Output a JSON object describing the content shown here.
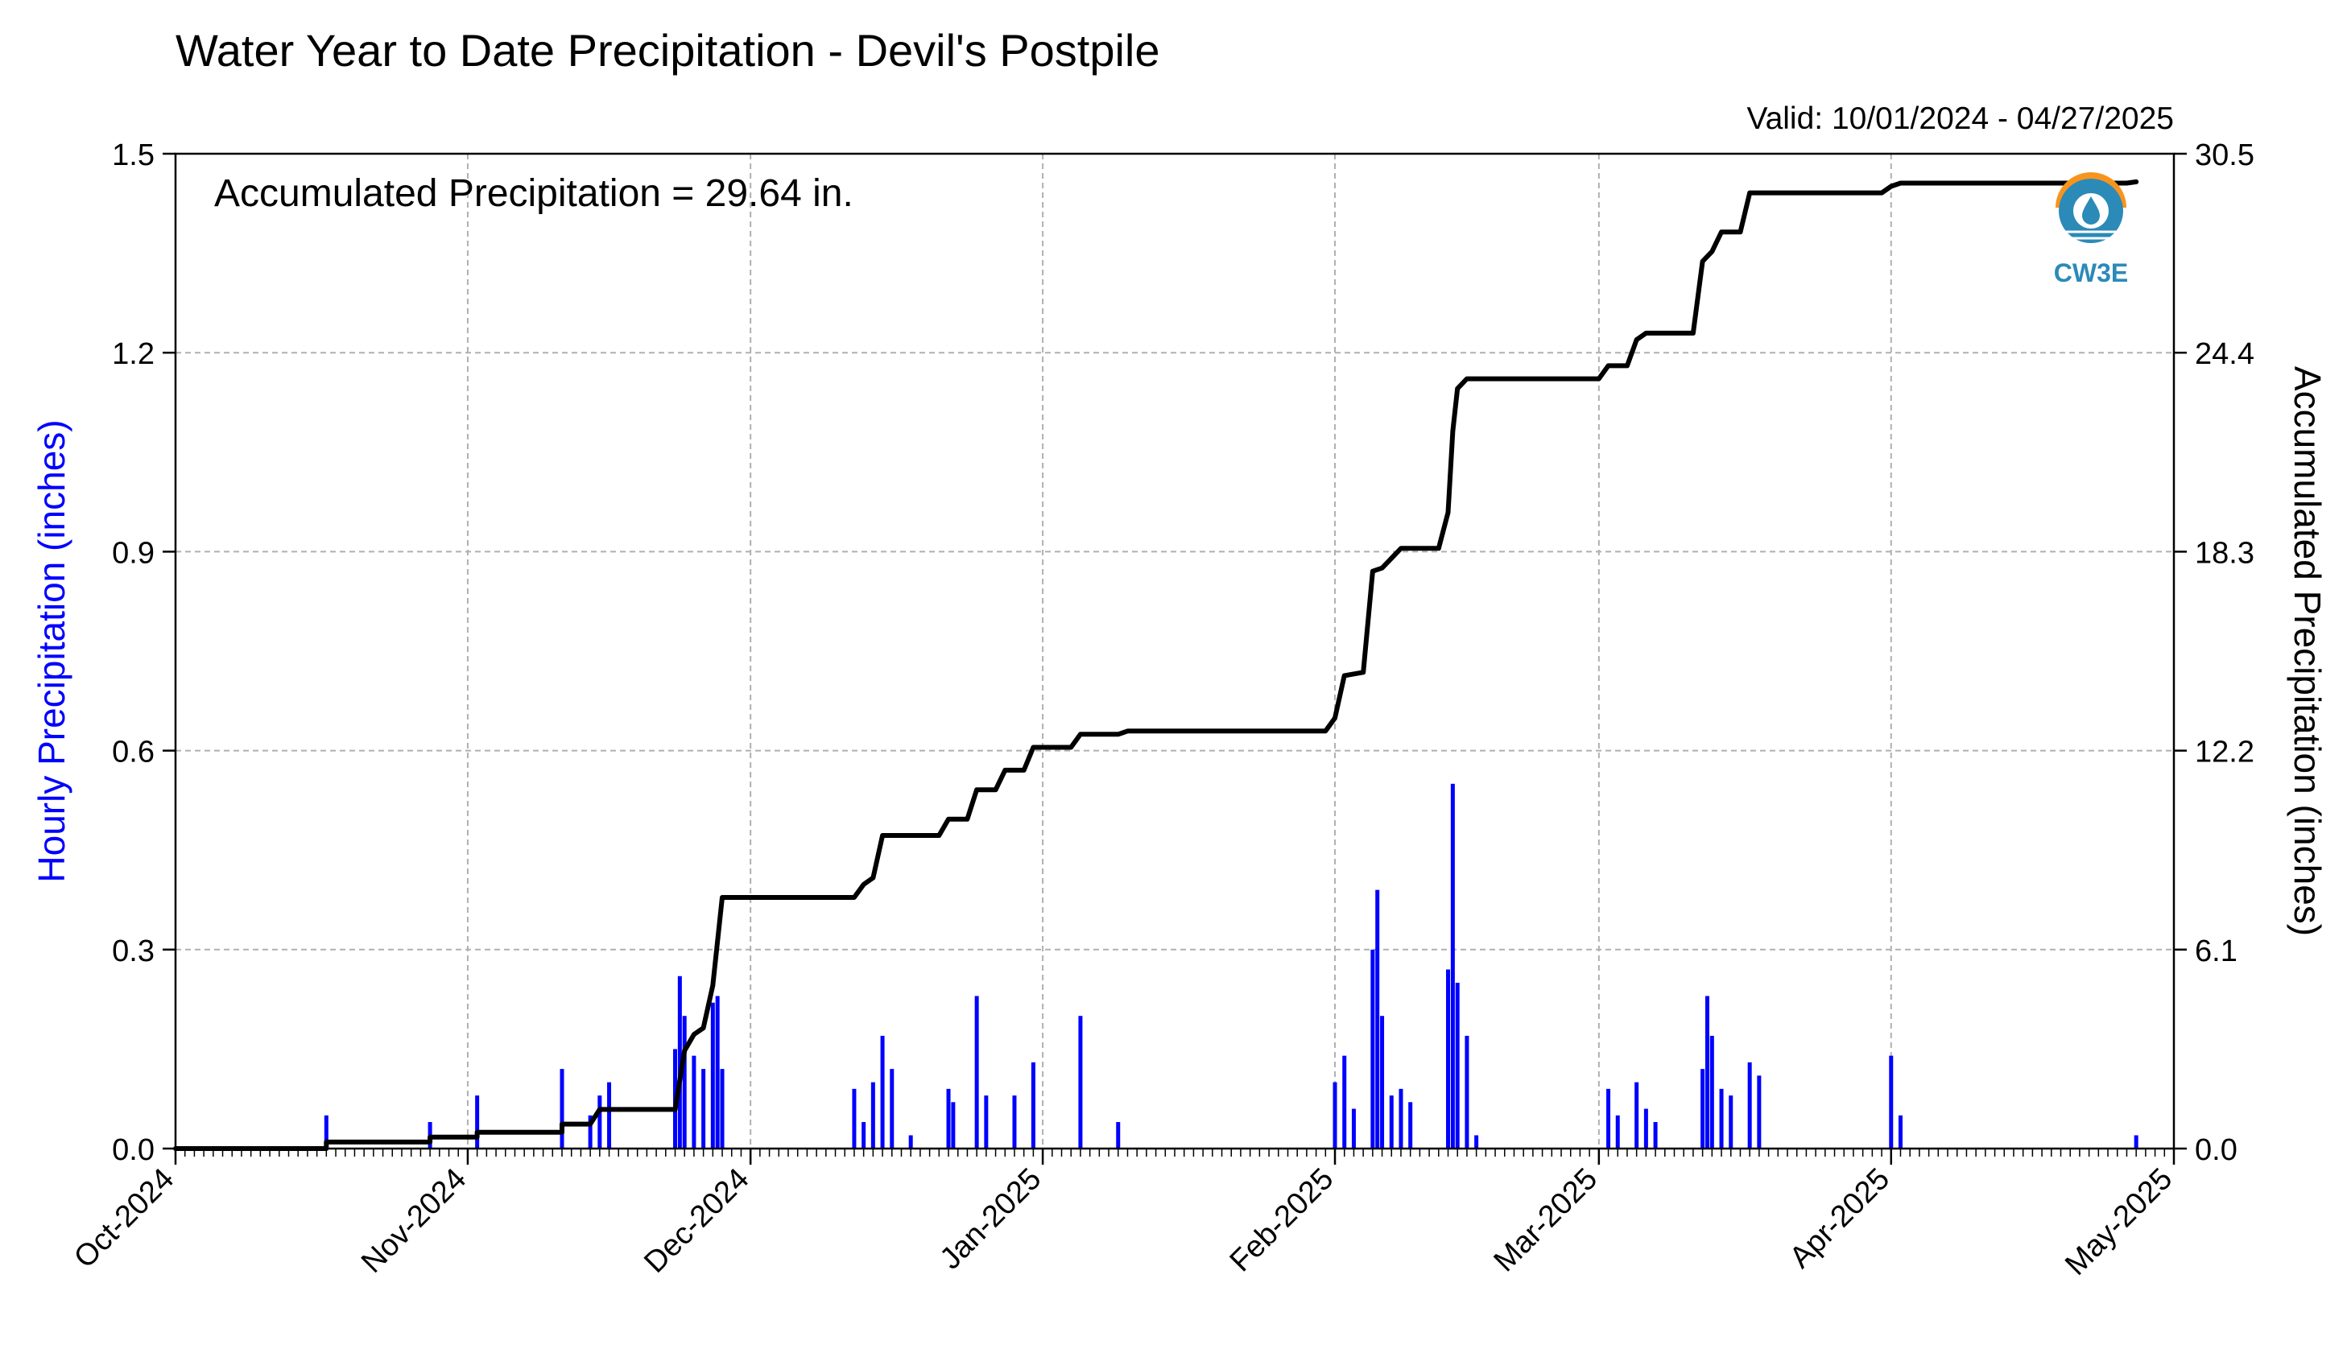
{
  "chart_data": {
    "type": "bar+line",
    "title": "Water Year to Date Precipitation - Devil's Postpile",
    "valid_text": "Valid: 10/01/2024 - 04/27/2025",
    "annotation": "Accumulated Precipitation = 29.64 in.",
    "logo_text": "CW3E",
    "ylabel_left": "Hourly Precipitation (inches)",
    "ylabel_right": "Accumulated Precipitation (inches)",
    "x_range": [
      "2024-10-01",
      "2025-05-01"
    ],
    "x_tick_labels": [
      "Oct-2024",
      "Nov-2024",
      "Dec-2024",
      "Jan-2025",
      "Feb-2025",
      "Mar-2025",
      "Apr-2025",
      "May-2025"
    ],
    "x_tick_dates": [
      "2024-10-01",
      "2024-11-01",
      "2024-12-01",
      "2025-01-01",
      "2025-02-01",
      "2025-03-01",
      "2025-04-01",
      "2025-05-01"
    ],
    "ylim_left": [
      0,
      1.5
    ],
    "ylim_right": [
      0,
      30.5
    ],
    "yticks_left": [
      "0.0",
      "0.3",
      "0.6",
      "0.9",
      "1.2",
      "1.5"
    ],
    "yticks_right": [
      "0.0",
      "6.1",
      "12.2",
      "18.3",
      "24.4",
      "30.5"
    ],
    "grid": true,
    "colors": {
      "hourly": "#0000ff",
      "accumulated": "#000000",
      "grid": "#b0b0b0",
      "logo_orange": "#f7941d",
      "logo_blue": "#2b8ab8"
    },
    "series": [
      {
        "name": "Hourly Precipitation (inches)",
        "axis": "left",
        "type": "bar",
        "points": [
          [
            "2024-10-17",
            0.05
          ],
          [
            "2024-10-28",
            0.04
          ],
          [
            "2024-11-02",
            0.08
          ],
          [
            "2024-11-11",
            0.12
          ],
          [
            "2024-11-14",
            0.05
          ],
          [
            "2024-11-15",
            0.08
          ],
          [
            "2024-11-16",
            0.1
          ],
          [
            "2024-11-23",
            0.15
          ],
          [
            "2024-11-23 12:00",
            0.26
          ],
          [
            "2024-11-24",
            0.2
          ],
          [
            "2024-11-25",
            0.14
          ],
          [
            "2024-11-26",
            0.12
          ],
          [
            "2024-11-27",
            0.22
          ],
          [
            "2024-11-27 12:00",
            0.23
          ],
          [
            "2024-11-28",
            0.12
          ],
          [
            "2024-12-12",
            0.09
          ],
          [
            "2024-12-13",
            0.04
          ],
          [
            "2024-12-14",
            0.1
          ],
          [
            "2024-12-15",
            0.17
          ],
          [
            "2024-12-16",
            0.12
          ],
          [
            "2024-12-18",
            0.02
          ],
          [
            "2024-12-22",
            0.09
          ],
          [
            "2024-12-22 12:00",
            0.07
          ],
          [
            "2024-12-25",
            0.23
          ],
          [
            "2024-12-26",
            0.08
          ],
          [
            "2024-12-29",
            0.08
          ],
          [
            "2024-12-31",
            0.13
          ],
          [
            "2025-01-05",
            0.2
          ],
          [
            "2025-01-09",
            0.04
          ],
          [
            "2025-02-01",
            0.1
          ],
          [
            "2025-02-02",
            0.14
          ],
          [
            "2025-02-03",
            0.06
          ],
          [
            "2025-02-05",
            0.3
          ],
          [
            "2025-02-05 12:00",
            0.39
          ],
          [
            "2025-02-06",
            0.2
          ],
          [
            "2025-02-07",
            0.08
          ],
          [
            "2025-02-08",
            0.09
          ],
          [
            "2025-02-09",
            0.07
          ],
          [
            "2025-02-13",
            0.27
          ],
          [
            "2025-02-13 12:00",
            0.55
          ],
          [
            "2025-02-14",
            0.25
          ],
          [
            "2025-02-15",
            0.17
          ],
          [
            "2025-02-16",
            0.02
          ],
          [
            "2025-03-02",
            0.09
          ],
          [
            "2025-03-03",
            0.05
          ],
          [
            "2025-03-05",
            0.1
          ],
          [
            "2025-03-06",
            0.06
          ],
          [
            "2025-03-07",
            0.04
          ],
          [
            "2025-03-12",
            0.12
          ],
          [
            "2025-03-12 12:00",
            0.23
          ],
          [
            "2025-03-13",
            0.17
          ],
          [
            "2025-03-14",
            0.09
          ],
          [
            "2025-03-15",
            0.08
          ],
          [
            "2025-03-17",
            0.13
          ],
          [
            "2025-03-18",
            0.11
          ],
          [
            "2025-04-01",
            0.14
          ],
          [
            "2025-04-02",
            0.05
          ],
          [
            "2025-04-27",
            0.02
          ]
        ]
      },
      {
        "name": "Accumulated Precipitation (inches)",
        "axis": "right",
        "type": "line",
        "points": [
          [
            "2024-10-01",
            0.0
          ],
          [
            "2024-10-17",
            0.0
          ],
          [
            "2024-10-17",
            0.2
          ],
          [
            "2024-10-28",
            0.2
          ],
          [
            "2024-10-28",
            0.35
          ],
          [
            "2024-11-02",
            0.35
          ],
          [
            "2024-11-02",
            0.5
          ],
          [
            "2024-11-11",
            0.5
          ],
          [
            "2024-11-11",
            0.75
          ],
          [
            "2024-11-14",
            0.75
          ],
          [
            "2024-11-15",
            1.2
          ],
          [
            "2024-11-23",
            1.2
          ],
          [
            "2024-11-24",
            3.0
          ],
          [
            "2024-11-25",
            3.5
          ],
          [
            "2024-11-26",
            3.7
          ],
          [
            "2024-11-27",
            5.0
          ],
          [
            "2024-11-28",
            7.7
          ],
          [
            "2024-12-12",
            7.7
          ],
          [
            "2024-12-13",
            8.1
          ],
          [
            "2024-12-14",
            8.3
          ],
          [
            "2024-12-15",
            9.6
          ],
          [
            "2024-12-21",
            9.6
          ],
          [
            "2024-12-22",
            10.1
          ],
          [
            "2024-12-24",
            10.1
          ],
          [
            "2024-12-25",
            11.0
          ],
          [
            "2024-12-27",
            11.0
          ],
          [
            "2024-12-28",
            11.6
          ],
          [
            "2024-12-30",
            11.6
          ],
          [
            "2024-12-31",
            12.3
          ],
          [
            "2025-01-04",
            12.3
          ],
          [
            "2025-01-05",
            12.7
          ],
          [
            "2025-01-09",
            12.7
          ],
          [
            "2025-01-10",
            12.8
          ],
          [
            "2025-01-31",
            12.8
          ],
          [
            "2025-02-01",
            13.2
          ],
          [
            "2025-02-02",
            14.5
          ],
          [
            "2025-02-04",
            14.6
          ],
          [
            "2025-02-05",
            17.7
          ],
          [
            "2025-02-06",
            17.8
          ],
          [
            "2025-02-07",
            18.1
          ],
          [
            "2025-02-08",
            18.4
          ],
          [
            "2025-02-12",
            18.4
          ],
          [
            "2025-02-13",
            19.5
          ],
          [
            "2025-02-13 12:00",
            22.0
          ],
          [
            "2025-02-14",
            23.3
          ],
          [
            "2025-02-15",
            23.6
          ],
          [
            "2025-03-01",
            23.6
          ],
          [
            "2025-03-02",
            24.0
          ],
          [
            "2025-03-04",
            24.0
          ],
          [
            "2025-03-05",
            24.8
          ],
          [
            "2025-03-06",
            25.0
          ],
          [
            "2025-03-11",
            25.0
          ],
          [
            "2025-03-12",
            27.2
          ],
          [
            "2025-03-13",
            27.5
          ],
          [
            "2025-03-14",
            28.1
          ],
          [
            "2025-03-16",
            28.1
          ],
          [
            "2025-03-17",
            29.3
          ],
          [
            "2025-03-31",
            29.3
          ],
          [
            "2025-04-01",
            29.5
          ],
          [
            "2025-04-02",
            29.6
          ],
          [
            "2025-04-26",
            29.6
          ],
          [
            "2025-04-27",
            29.64
          ]
        ]
      }
    ]
  }
}
